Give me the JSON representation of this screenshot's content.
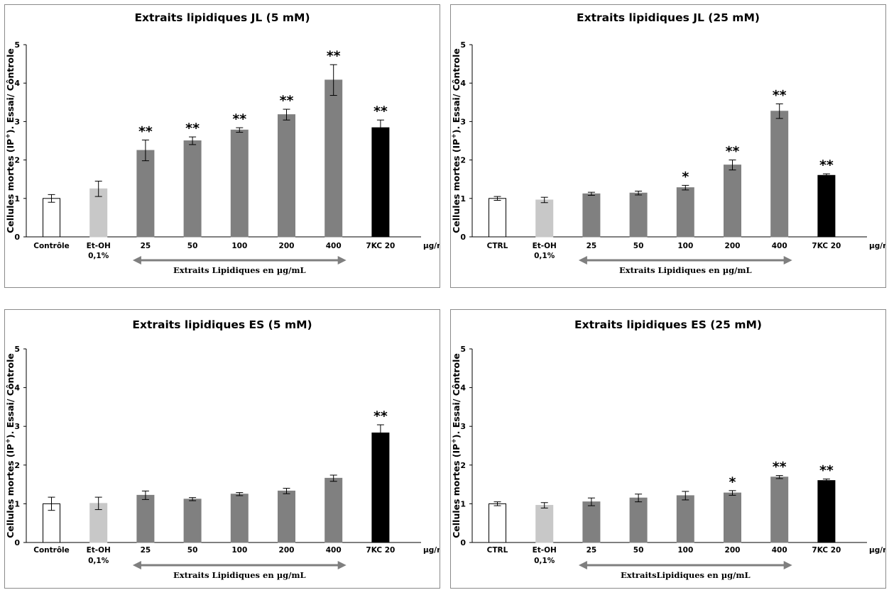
{
  "chart_data": [
    {
      "type": "bar",
      "title": "Extraits lipidiques JL (5 mM)",
      "ylabel": "Cellules mortes (IP+). Essai/ Côntrole",
      "ylabel_sup": "+",
      "ylim": [
        0,
        5
      ],
      "yticks": [
        "0",
        "1",
        "2",
        "3",
        "4",
        "5"
      ],
      "categories": [
        "Contrôle",
        "Et-OH\n0,1%",
        "25",
        "50",
        "100",
        "200",
        "400",
        "7KC 20"
      ],
      "unit": "µg/mL",
      "xlabel": "Extraits Lipidiques en µg/mL",
      "values": [
        1.0,
        1.25,
        2.25,
        2.5,
        2.78,
        3.18,
        4.08,
        2.84
      ],
      "errors": [
        0.1,
        0.2,
        0.27,
        0.1,
        0.06,
        0.14,
        0.4,
        0.2
      ],
      "significance": [
        "",
        "",
        "**",
        "**",
        "**",
        "**",
        "**",
        "**"
      ],
      "colors": [
        "#ffffff",
        "#c8c8c8",
        "#808080",
        "#808080",
        "#808080",
        "#808080",
        "#808080",
        "#000000"
      ],
      "grid": false,
      "legend": "none"
    },
    {
      "type": "bar",
      "title": "Extraits lipidiques JL (25 mM)",
      "ylabel": "Cellules mortes (IP+). Essai/ Côntrole",
      "ylabel_sup": "+",
      "ylim": [
        0,
        5
      ],
      "yticks": [
        "0",
        "1",
        "2",
        "3",
        "4",
        "5"
      ],
      "categories": [
        "CTRL",
        "Et-OH\n0,1%",
        "25",
        "50",
        "100",
        "200",
        "400",
        "7KC 20"
      ],
      "unit": "µg/mL",
      "xlabel": "Extraits Lipidiques en µg/mL",
      "values": [
        1.0,
        0.96,
        1.12,
        1.14,
        1.28,
        1.87,
        3.27,
        1.6
      ],
      "errors": [
        0.05,
        0.07,
        0.04,
        0.05,
        0.06,
        0.13,
        0.19,
        0.04
      ],
      "significance": [
        "",
        "",
        "",
        "",
        "*",
        "**",
        "**",
        "**"
      ],
      "colors": [
        "#ffffff",
        "#c8c8c8",
        "#808080",
        "#808080",
        "#808080",
        "#808080",
        "#808080",
        "#000000"
      ],
      "grid": false,
      "legend": "none"
    },
    {
      "type": "bar",
      "title": "Extraits lipidiques ES (5 mM)",
      "ylabel": "Cellules mortes (IP+). Essai/ Côntrole",
      "ylabel_sup": "+",
      "ylim": [
        0,
        5
      ],
      "yticks": [
        "0",
        "1",
        "2",
        "3",
        "4",
        "5"
      ],
      "categories": [
        "Contrôle",
        "Et-OH\n0,1%",
        "25",
        "50",
        "100",
        "200",
        "400",
        "7KC 20"
      ],
      "unit": "µg/mL",
      "xlabel": "Extraits Lipidiques en µg/mL",
      "values": [
        1.0,
        1.01,
        1.22,
        1.12,
        1.25,
        1.33,
        1.66,
        2.83
      ],
      "errors": [
        0.17,
        0.16,
        0.11,
        0.04,
        0.04,
        0.07,
        0.08,
        0.21
      ],
      "significance": [
        "",
        "",
        "",
        "",
        "",
        "",
        "",
        "**"
      ],
      "colors": [
        "#ffffff",
        "#c8c8c8",
        "#808080",
        "#808080",
        "#808080",
        "#808080",
        "#808080",
        "#000000"
      ],
      "grid": false,
      "legend": "none"
    },
    {
      "type": "bar",
      "title": "Extraits lipidiques ES (25 mM)",
      "ylabel": "Cellules mortes (IP+). Essai/ Côntrole",
      "ylabel_sup": "+",
      "ylim": [
        0,
        5
      ],
      "yticks": [
        "0",
        "1",
        "2",
        "3",
        "4",
        "5"
      ],
      "categories": [
        "CTRL",
        "Et-OH\n0,1%",
        "25",
        "50",
        "100",
        "200",
        "400",
        "7KC 20"
      ],
      "unit": "µg/mL",
      "xlabel": "ExtraitsLipidiques en µg/mL",
      "values": [
        1.0,
        0.96,
        1.05,
        1.15,
        1.21,
        1.28,
        1.69,
        1.6
      ],
      "errors": [
        0.05,
        0.07,
        0.1,
        0.1,
        0.11,
        0.06,
        0.04,
        0.04
      ],
      "significance": [
        "",
        "",
        "",
        "",
        "",
        "*",
        "**",
        "**"
      ],
      "colors": [
        "#ffffff",
        "#c8c8c8",
        "#808080",
        "#808080",
        "#808080",
        "#808080",
        "#808080",
        "#000000"
      ],
      "grid": false,
      "legend": "none"
    }
  ]
}
